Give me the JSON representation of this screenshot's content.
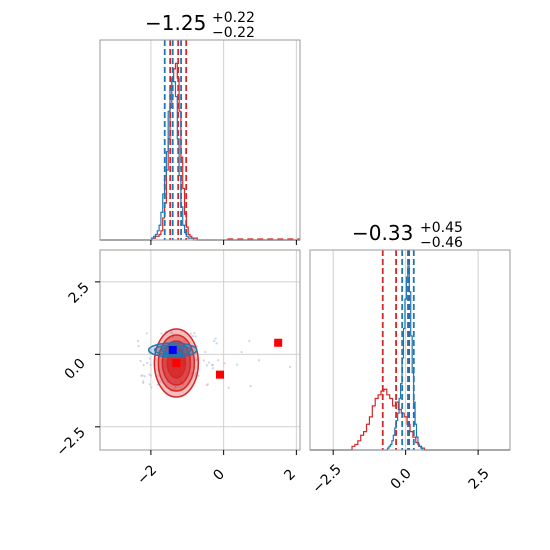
{
  "chart_data": {
    "type": "corner",
    "params": [
      {
        "title_median": "−1.25",
        "title_plus": "+0.22",
        "title_minus": "−0.22"
      },
      {
        "title_median": "−0.33",
        "title_plus": "+0.45",
        "title_minus": "−0.46"
      }
    ],
    "x_ticks_param1": [
      "−2",
      "0",
      "2"
    ],
    "x_ticks_param2": [
      "−2.5",
      "0.0",
      "2.5"
    ],
    "y_ticks_param2": [
      "2.5",
      "0.0",
      "−2.5"
    ],
    "x_tick_values_param1": [
      -2,
      0,
      2
    ],
    "x_tick_values_param2": [
      -2.5,
      0.0,
      2.5
    ],
    "xlim_param1": [
      -3.4,
      2.1
    ],
    "xlim_param2": [
      -3.3,
      3.6
    ],
    "grid": true,
    "series": [
      {
        "color": "#d62728",
        "hist_param1": {
          "bins": [
            -1.95,
            -1.9,
            -1.85,
            -1.8,
            -1.75,
            -1.7,
            -1.65,
            -1.6,
            -1.55,
            -1.5,
            -1.45,
            -1.4,
            -1.35,
            -1.3,
            -1.25,
            -1.2,
            -1.15,
            -1.1,
            -1.05,
            -1.0,
            -0.95,
            -0.9,
            -0.85,
            -0.8,
            -0.75
          ],
          "counts": [
            0.01,
            0.01,
            0.02,
            0.02,
            0.03,
            0.05,
            0.12,
            0.2,
            0.38,
            0.55,
            0.72,
            0.88,
            0.93,
            0.96,
            0.88,
            0.7,
            0.45,
            0.28,
            0.14,
            0.07,
            0.03,
            0.02,
            0.01,
            0.01,
            0.01
          ]
        },
        "quantiles_param1": [
          -1.47,
          -1.25,
          -1.03
        ],
        "hist_param2": {
          "bins": [
            -1.8,
            -1.7,
            -1.6,
            -1.5,
            -1.4,
            -1.3,
            -1.2,
            -1.1,
            -1.0,
            -0.9,
            -0.8,
            -0.7,
            -0.6,
            -0.5,
            -0.4,
            -0.3,
            -0.2,
            -0.1,
            0.0,
            0.1,
            0.2,
            0.3,
            0.4,
            0.5,
            0.6
          ],
          "counts": [
            0.02,
            0.03,
            0.05,
            0.08,
            0.1,
            0.14,
            0.18,
            0.24,
            0.28,
            0.3,
            0.32,
            0.33,
            0.3,
            0.28,
            0.24,
            0.26,
            0.22,
            0.2,
            0.18,
            0.14,
            0.1,
            0.07,
            0.04,
            0.02,
            0.01
          ]
        },
        "quantiles_param2": [
          -0.79,
          -0.33,
          0.12
        ],
        "markers": [
          {
            "x": 1.5,
            "y": 0.4
          },
          {
            "x": -0.1,
            "y": -0.7
          },
          {
            "x": -1.3,
            "y": -0.3
          }
        ]
      },
      {
        "color": "#1f77b4",
        "hist_param1": {
          "bins": [
            -1.95,
            -1.9,
            -1.85,
            -1.8,
            -1.75,
            -1.7,
            -1.65,
            -1.6,
            -1.55,
            -1.5,
            -1.45,
            -1.4,
            -1.35,
            -1.3,
            -1.25,
            -1.2,
            -1.15,
            -1.1,
            -1.05,
            -1.0,
            -0.95,
            -0.9,
            -0.85,
            -0.8,
            -0.75
          ],
          "counts": [
            0.01,
            0.02,
            0.03,
            0.05,
            0.08,
            0.15,
            0.25,
            0.35,
            0.48,
            0.7,
            0.82,
            0.88,
            0.86,
            0.78,
            0.55,
            0.35,
            0.18,
            0.08,
            0.04,
            0.02,
            0.01,
            0.01,
            0.01,
            0.0,
            0.0
          ]
        },
        "quantiles_param1": [
          -1.62,
          -1.4,
          -1.17
        ],
        "hist_param2": {
          "bins": [
            -0.6,
            -0.55,
            -0.5,
            -0.45,
            -0.4,
            -0.35,
            -0.3,
            -0.25,
            -0.2,
            -0.15,
            -0.1,
            -0.05,
            0.0,
            0.05,
            0.1,
            0.15,
            0.2,
            0.25,
            0.3,
            0.35,
            0.4,
            0.45,
            0.5,
            0.55,
            0.6
          ],
          "counts": [
            0.01,
            0.02,
            0.03,
            0.05,
            0.08,
            0.12,
            0.16,
            0.2,
            0.28,
            0.36,
            0.5,
            0.66,
            0.82,
            0.94,
            1.0,
            0.86,
            0.62,
            0.42,
            0.26,
            0.14,
            0.07,
            0.03,
            0.02,
            0.01,
            0.0
          ]
        },
        "quantiles_param2": [
          -0.12,
          0.08,
          0.28
        ],
        "markers": [
          {
            "x": -1.4,
            "y": 0.15
          }
        ]
      }
    ]
  }
}
